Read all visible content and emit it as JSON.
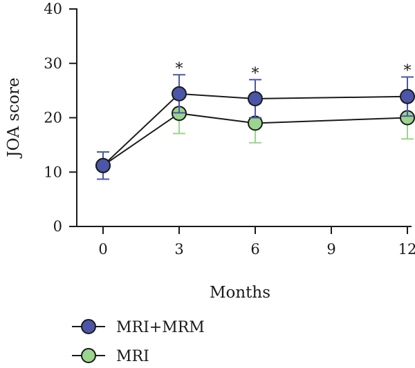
{
  "chart_data": {
    "type": "line",
    "xlabel": "Months",
    "ylabel": "JOA score",
    "x": [
      0,
      3,
      6,
      12
    ],
    "xticks": [
      0,
      3,
      6,
      9,
      12
    ],
    "xlim": [
      0,
      12
    ],
    "yticks": [
      0,
      10,
      20,
      30,
      40
    ],
    "ylim": [
      0,
      40
    ],
    "grid": false,
    "legend": "bottom-left",
    "series": [
      {
        "name": "MRI+MRM",
        "color": "#4b56a8",
        "values": [
          11.2,
          24.4,
          23.5,
          23.9
        ],
        "error": [
          2.5,
          3.5,
          3.5,
          3.6
        ]
      },
      {
        "name": "MRI",
        "color": "#9bd48c",
        "values": [
          11.2,
          20.8,
          19.0,
          20.0
        ],
        "error": [
          2.5,
          3.7,
          3.6,
          3.9
        ]
      }
    ],
    "annotations": [
      {
        "x": 3,
        "text": "*"
      },
      {
        "x": 6,
        "text": "*"
      },
      {
        "x": 12,
        "text": "*"
      }
    ]
  }
}
